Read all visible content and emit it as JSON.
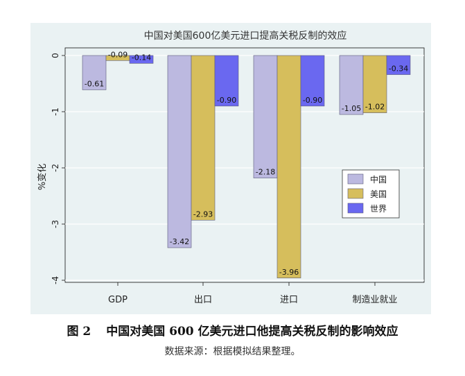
{
  "chart_data": {
    "type": "bar",
    "title": "中国对美国600亿美元进口提高关税反制的效应",
    "ylabel": "%变化",
    "xlabel": "",
    "categories": [
      "GDP",
      "出口",
      "进口",
      "制造业就业"
    ],
    "series": [
      {
        "name": "中国",
        "color": "#bcb9e0",
        "values": [
          -0.61,
          -3.42,
          -2.18,
          -1.05
        ],
        "labels": [
          "-0.61",
          "-3.42",
          "-2.18",
          "-1.05"
        ]
      },
      {
        "name": "美国",
        "color": "#d6be5c",
        "values": [
          -0.09,
          -2.93,
          -3.96,
          -1.02
        ],
        "labels": [
          "-0.09",
          "-2.93",
          "-3.96",
          "-1.02"
        ]
      },
      {
        "name": "世界",
        "color": "#6a68f0",
        "values": [
          -0.14,
          -0.9,
          -0.9,
          -0.34
        ],
        "labels": [
          "-0.14",
          "-0.90",
          "-0.90",
          "-0.34"
        ]
      }
    ],
    "ylim": [
      -4.1,
      0.08
    ],
    "yticks": [
      0,
      -1,
      -2,
      -3,
      -4
    ],
    "ytick_labels": [
      "0",
      "-1",
      "-2",
      "-3",
      "-4"
    ],
    "grid": true,
    "legend_position": "right"
  },
  "caption": {
    "number": "图 2",
    "title": "中国对美国 600 亿美元进口他提高关税反制的影响效应"
  },
  "source": "数据来源：根据模拟结果整理。"
}
